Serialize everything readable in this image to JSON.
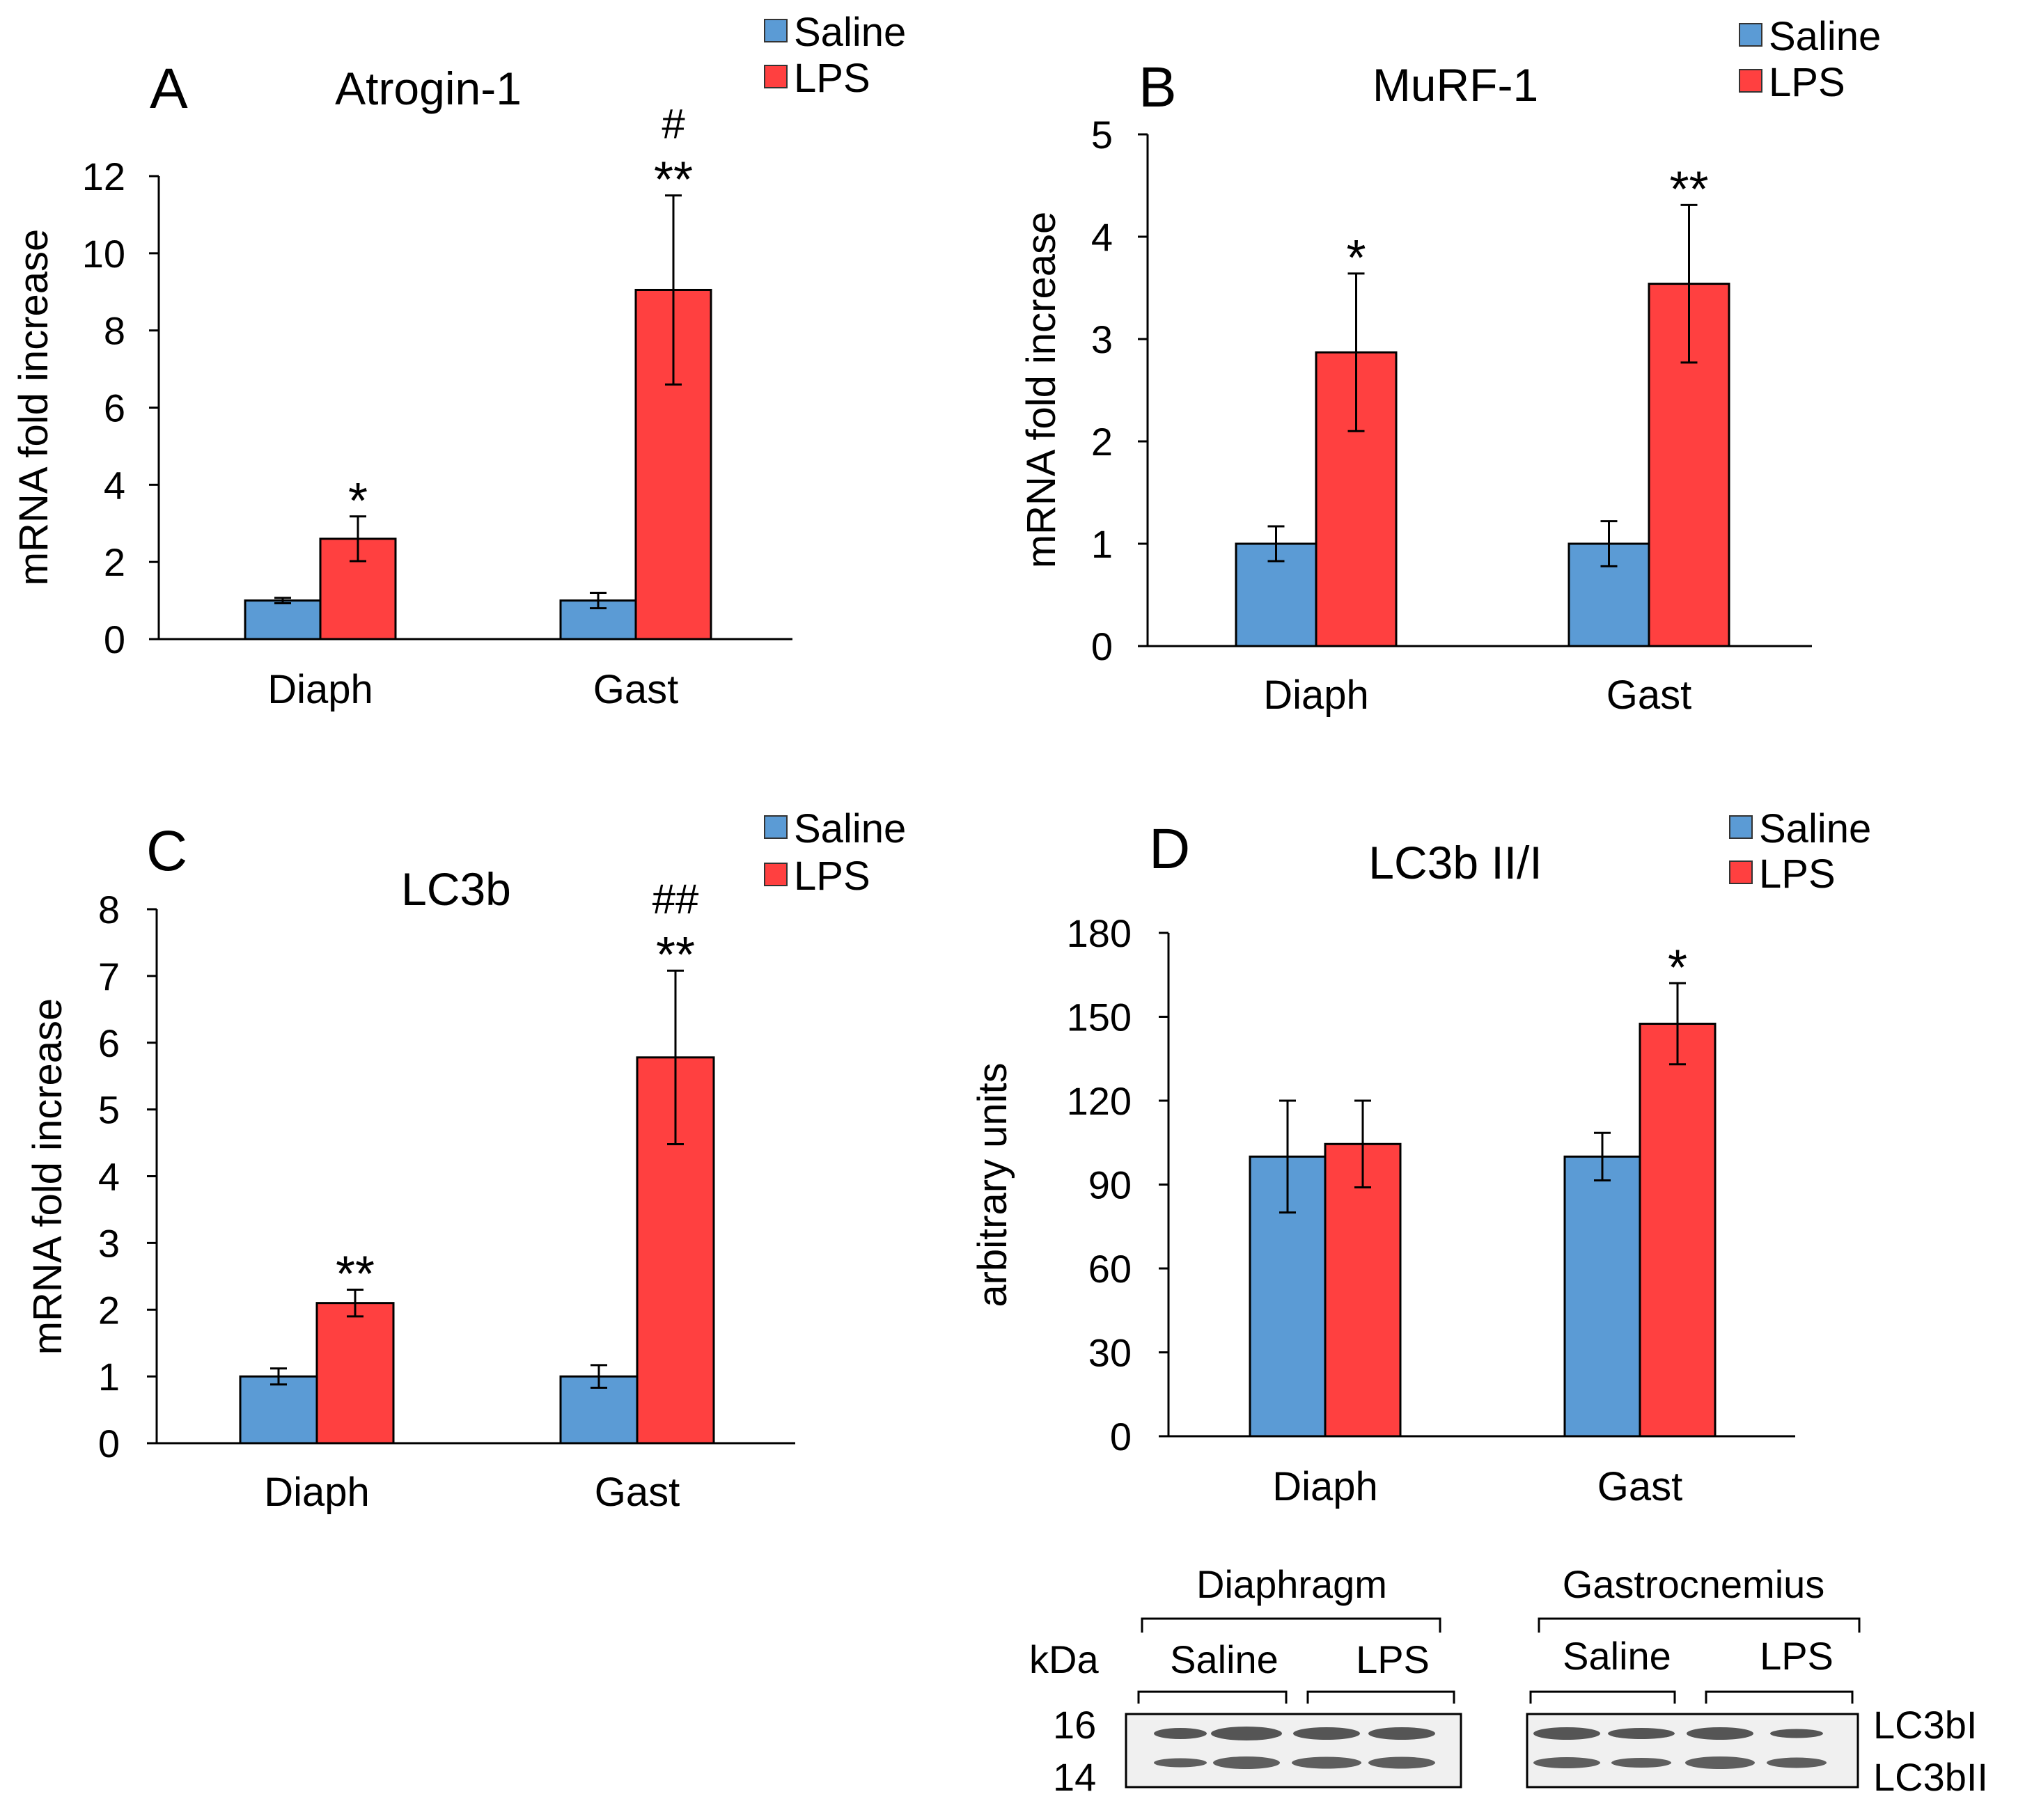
{
  "colors": {
    "saline": "#5b9bd5",
    "lps": "#ff4040",
    "axis": "#000000"
  },
  "chart_data": [
    {
      "panel": "A",
      "type": "bar",
      "title": "Atrogin-1",
      "ylabel": "mRNA fold increase",
      "ylim": [
        0,
        12
      ],
      "yticks": [
        0,
        2,
        4,
        6,
        8,
        10,
        12
      ],
      "categories": [
        "Diaph",
        "Gast"
      ],
      "series": [
        {
          "name": "Saline",
          "values": [
            1.0,
            1.0
          ],
          "errors": [
            0.07,
            0.2
          ]
        },
        {
          "name": "LPS",
          "values": [
            2.6,
            9.05
          ],
          "errors": [
            0.58,
            2.45
          ]
        }
      ],
      "annotations": [
        {
          "category": "Diaph",
          "series": "LPS",
          "lines": [
            "*"
          ]
        },
        {
          "category": "Gast",
          "series": "LPS",
          "lines": [
            "#",
            "**"
          ]
        }
      ],
      "legend": [
        "Saline",
        "LPS"
      ]
    },
    {
      "panel": "B",
      "type": "bar",
      "title": "MuRF-1",
      "ylabel": "mRNA fold increase",
      "ylim": [
        0,
        5
      ],
      "yticks": [
        0,
        1,
        2,
        3,
        4,
        5
      ],
      "categories": [
        "Diaph",
        "Gast"
      ],
      "series": [
        {
          "name": "Saline",
          "values": [
            1.0,
            1.0
          ],
          "errors": [
            0.17,
            0.22
          ]
        },
        {
          "name": "LPS",
          "values": [
            2.87,
            3.54
          ],
          "errors": [
            0.77,
            0.77
          ]
        }
      ],
      "annotations": [
        {
          "category": "Diaph",
          "series": "LPS",
          "lines": [
            "*"
          ]
        },
        {
          "category": "Gast",
          "series": "LPS",
          "lines": [
            "**"
          ]
        }
      ],
      "legend": [
        "Saline",
        "LPS"
      ]
    },
    {
      "panel": "C",
      "type": "bar",
      "title": "LC3b",
      "ylabel": "mRNA fold increase",
      "ylim": [
        0,
        8
      ],
      "yticks": [
        0,
        1,
        2,
        3,
        4,
        5,
        6,
        7,
        8
      ],
      "categories": [
        "Diaph",
        "Gast"
      ],
      "series": [
        {
          "name": "Saline",
          "values": [
            1.0,
            1.0
          ],
          "errors": [
            0.12,
            0.17
          ]
        },
        {
          "name": "LPS",
          "values": [
            2.1,
            5.78
          ],
          "errors": [
            0.2,
            1.3
          ]
        }
      ],
      "annotations": [
        {
          "category": "Diaph",
          "series": "LPS",
          "lines": [
            "**"
          ]
        },
        {
          "category": "Gast",
          "series": "LPS",
          "lines": [
            "##",
            "**"
          ]
        }
      ],
      "legend": [
        "Saline",
        "LPS"
      ]
    },
    {
      "panel": "D",
      "type": "bar",
      "title": "LC3b II/I",
      "ylabel": "arbitrary units",
      "ylim": [
        0,
        180
      ],
      "yticks": [
        0,
        30,
        60,
        90,
        120,
        150,
        180
      ],
      "categories": [
        "Diaph",
        "Gast"
      ],
      "series": [
        {
          "name": "Saline",
          "values": [
            100,
            100
          ],
          "errors": [
            20,
            8.5
          ]
        },
        {
          "name": "LPS",
          "values": [
            104.5,
            147.5
          ],
          "errors": [
            15.5,
            14.5
          ]
        }
      ],
      "annotations": [
        {
          "category": "Gast",
          "series": "LPS",
          "lines": [
            "*"
          ]
        }
      ],
      "legend": [
        "Saline",
        "LPS"
      ]
    }
  ],
  "blot": {
    "groups": [
      "Diaphragm",
      "Gastrocnemius"
    ],
    "lanes": [
      "Saline",
      "LPS"
    ],
    "kda_label": "kDa",
    "markers": [
      "16",
      "14"
    ],
    "bands": [
      "LC3bI",
      "LC3bII"
    ]
  }
}
